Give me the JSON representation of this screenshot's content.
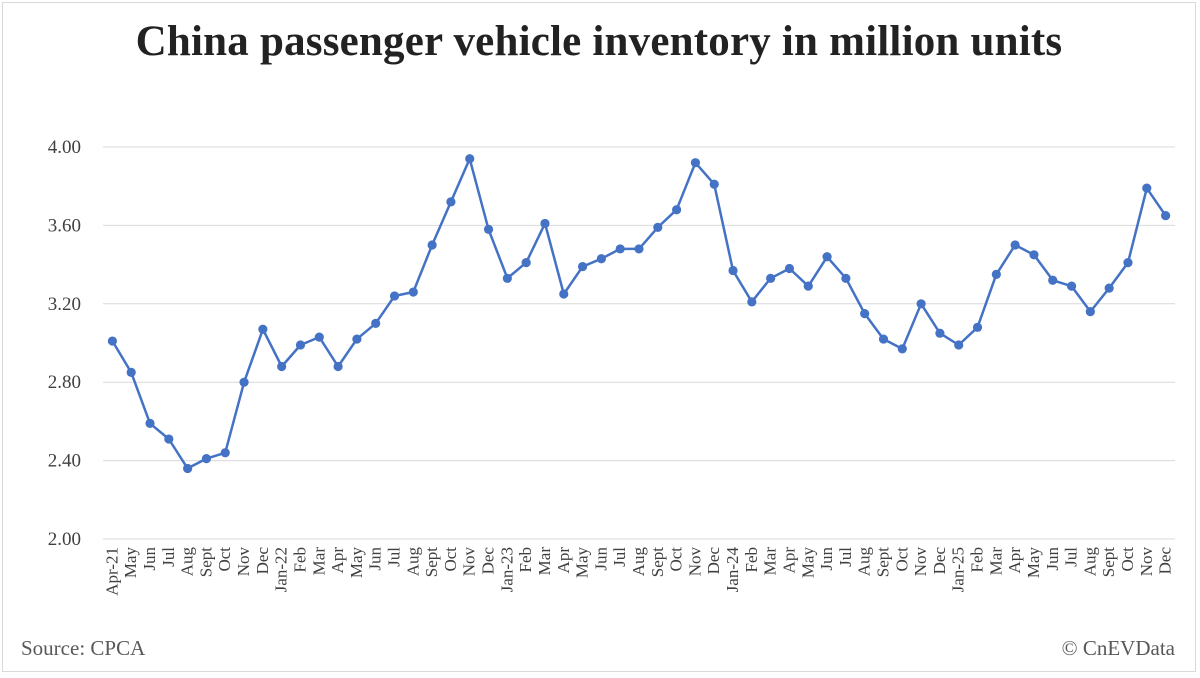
{
  "footer": {
    "source": "Source: CPCA",
    "credit": "© CnEVData"
  },
  "colors": {
    "series": "#4472c4",
    "grid": "#d9d9d9",
    "axis_text": "#404040",
    "title": "#222222"
  },
  "chart_data": {
    "type": "line",
    "title": "China passenger vehicle inventory in million units",
    "xlabel": "",
    "ylabel": "",
    "ylim": [
      2.0,
      4.0
    ],
    "yticks": [
      "2.00",
      "2.40",
      "2.80",
      "3.20",
      "3.60",
      "4.00"
    ],
    "grid": true,
    "legend": "none",
    "categories": [
      "Apr-21",
      "May",
      "Jun",
      "Jul",
      "Aug",
      "Sept",
      "Oct",
      "Nov",
      "Dec",
      "Jan-22",
      "Feb",
      "Mar",
      "Apr",
      "May",
      "Jun",
      "Jul",
      "Aug",
      "Sept",
      "Oct",
      "Nov",
      "Dec",
      "Jan-23",
      "Feb",
      "Mar",
      "Apr",
      "May",
      "Jun",
      "Jul",
      "Aug",
      "Sept",
      "Oct",
      "Nov",
      "Dec",
      "Jan-24",
      "Feb",
      "Mar",
      "Apr",
      "May",
      "Jun",
      "Jul",
      "Aug",
      "Sept",
      "Oct",
      "Nov",
      "Dec",
      "Jan-25",
      "Feb",
      "Mar",
      "Apr",
      "May",
      "Jun",
      "Jul",
      "Aug",
      "Sept",
      "Oct",
      "Nov",
      "Dec"
    ],
    "series": [
      {
        "values": [
          3.01,
          2.85,
          2.59,
          2.51,
          2.36,
          2.41,
          2.44,
          2.8,
          3.07,
          2.88,
          2.99,
          3.03,
          2.88,
          3.02,
          3.1,
          3.24,
          3.26,
          3.5,
          3.72,
          3.94,
          3.58,
          3.33,
          3.41,
          3.61,
          3.25,
          3.39,
          3.43,
          3.48,
          3.48,
          3.59,
          3.68,
          3.92,
          3.81,
          3.37,
          3.21,
          3.33,
          3.38,
          3.29,
          3.44,
          3.33,
          3.15,
          3.02,
          2.97,
          3.2,
          3.05,
          2.99,
          3.08,
          3.35,
          3.5,
          3.45,
          3.32,
          3.29,
          3.16,
          3.28,
          3.41,
          3.79,
          3.65
        ]
      }
    ]
  }
}
